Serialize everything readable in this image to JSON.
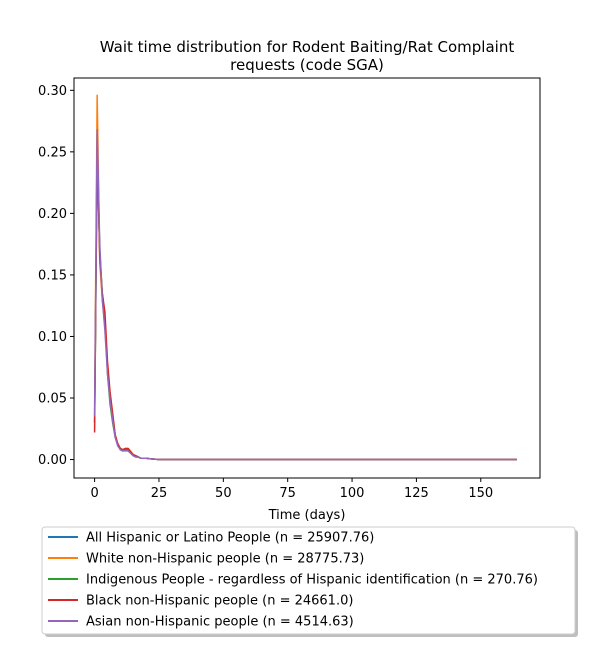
{
  "chart_data": {
    "type": "line",
    "title_line1": "Wait time distribution  for Rodent Baiting/Rat Complaint",
    "title_line2": "requests (code SGA)",
    "xlabel": "Time (days)",
    "ylabel": "",
    "xlim": [
      -8,
      173
    ],
    "ylim": [
      -0.015,
      0.31
    ],
    "xticks": [
      0,
      25,
      50,
      75,
      100,
      125,
      150
    ],
    "yticks": [
      0.0,
      0.05,
      0.1,
      0.15,
      0.2,
      0.25,
      0.3
    ],
    "ytick_labels": [
      "0.00",
      "0.05",
      "0.10",
      "0.15",
      "0.20",
      "0.25",
      "0.30"
    ],
    "xtick_labels": [
      "0",
      "25",
      "50",
      "75",
      "100",
      "125",
      "150"
    ],
    "grid": false,
    "legend_placement": "below",
    "x": [
      0,
      1,
      2,
      3,
      4,
      5,
      6,
      7,
      8,
      9,
      10,
      11,
      12,
      13,
      14,
      15,
      16,
      17,
      18,
      19,
      20,
      22,
      25,
      30,
      40,
      60,
      100,
      164
    ],
    "series": [
      {
        "name": "All Hispanic or Latino People (n = 25907.76)",
        "color": "#1f77b4",
        "values": [
          0.03,
          0.25,
          0.17,
          0.13,
          0.11,
          0.075,
          0.05,
          0.035,
          0.02,
          0.012,
          0.008,
          0.007,
          0.008,
          0.008,
          0.006,
          0.004,
          0.003,
          0.002,
          0.001,
          0.001,
          0.001,
          0.0005,
          0,
          0,
          0,
          0,
          0,
          0
        ]
      },
      {
        "name": "White non-Hispanic people (n = 28775.73)",
        "color": "#ff7f0e",
        "values": [
          0.04,
          0.296,
          0.16,
          0.13,
          0.115,
          0.075,
          0.05,
          0.035,
          0.02,
          0.012,
          0.009,
          0.008,
          0.009,
          0.009,
          0.007,
          0.004,
          0.003,
          0.002,
          0.001,
          0.001,
          0.001,
          0.0005,
          0,
          0,
          0,
          0,
          0,
          0
        ]
      },
      {
        "name": "Indigenous People - regardless of Hispanic identification (n = 270.76)",
        "color": "#2ca02c",
        "values": [
          0.03,
          0.24,
          0.17,
          0.135,
          0.115,
          0.07,
          0.045,
          0.03,
          0.018,
          0.012,
          0.008,
          0.007,
          0.008,
          0.008,
          0.006,
          0.004,
          0.003,
          0.002,
          0.001,
          0.001,
          0.001,
          0.0005,
          0,
          0,
          0,
          0,
          0,
          0
        ]
      },
      {
        "name": "Black non-Hispanic people (n = 24661.0)",
        "color": "#d62728",
        "values": [
          0.022,
          0.26,
          0.165,
          0.135,
          0.12,
          0.08,
          0.055,
          0.038,
          0.02,
          0.013,
          0.009,
          0.008,
          0.009,
          0.009,
          0.006,
          0.004,
          0.003,
          0.002,
          0.001,
          0.001,
          0.001,
          0.0005,
          0,
          0,
          0,
          0,
          0,
          0
        ]
      },
      {
        "name": "Asian non-Hispanic people (n = 4514.63)",
        "color": "#9467bd",
        "values": [
          0.035,
          0.268,
          0.175,
          0.13,
          0.105,
          0.07,
          0.048,
          0.032,
          0.018,
          0.011,
          0.008,
          0.007,
          0.007,
          0.007,
          0.005,
          0.003,
          0.002,
          0.002,
          0.001,
          0.001,
          0.001,
          0.0005,
          0,
          0,
          0,
          0,
          0,
          0
        ]
      }
    ]
  }
}
